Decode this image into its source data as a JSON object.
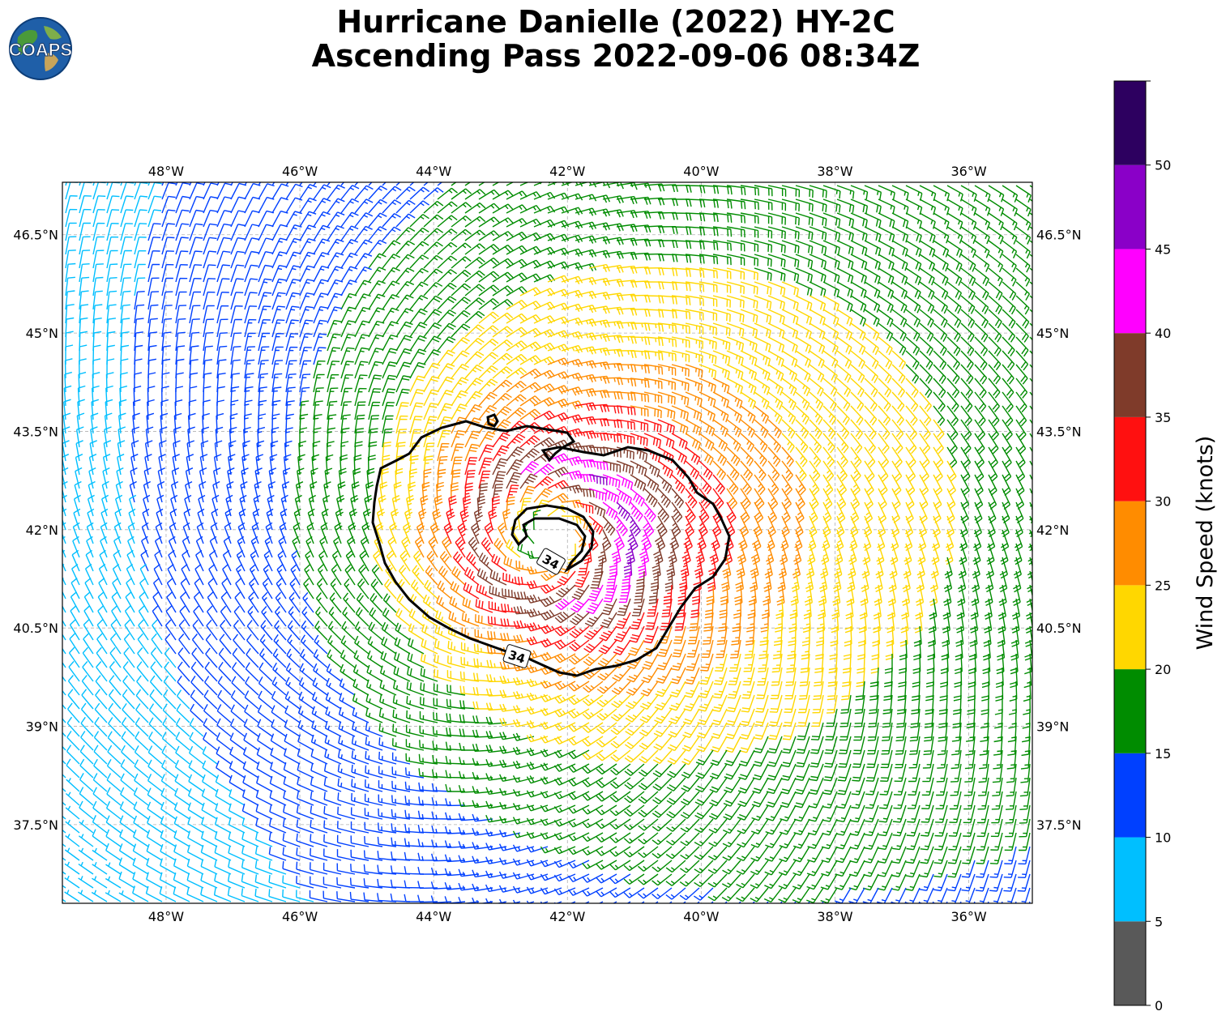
{
  "title": {
    "line1": "Hurricane Danielle (2022) HY-2C",
    "line2": "Ascending Pass 2022-09-06 08:34Z"
  },
  "logo": {
    "text": "COAPS"
  },
  "map": {
    "lon_range": [
      -49.55,
      -35.05
    ],
    "lat_range": [
      36.3,
      47.3
    ],
    "lon_ticks": [
      {
        "value": -48,
        "label": "48°W"
      },
      {
        "value": -46,
        "label": "46°W"
      },
      {
        "value": -44,
        "label": "44°W"
      },
      {
        "value": -42,
        "label": "42°W"
      },
      {
        "value": -40,
        "label": "40°W"
      },
      {
        "value": -38,
        "label": "38°W"
      },
      {
        "value": -36,
        "label": "36°W"
      }
    ],
    "lat_ticks": [
      {
        "value": 46.5,
        "label": "46.5°N"
      },
      {
        "value": 45.0,
        "label": "45°N"
      },
      {
        "value": 43.5,
        "label": "43.5°N"
      },
      {
        "value": 42.0,
        "label": "42°N"
      },
      {
        "value": 40.5,
        "label": "40.5°N"
      },
      {
        "value": 39.0,
        "label": "39°N"
      },
      {
        "value": 37.5,
        "label": "37.5°N"
      }
    ],
    "grid": true,
    "storm_center": {
      "lon": -42.2,
      "lat": 41.9
    },
    "contour_level": "34",
    "contour_labels": [
      "34",
      "34"
    ]
  },
  "colorbar": {
    "label": "Wind Speed (knots)",
    "bounds": [
      0,
      5,
      10,
      15,
      20,
      25,
      30,
      35,
      40,
      45,
      50,
      55
    ],
    "tick_labels": [
      "0",
      "5",
      "10",
      "15",
      "20",
      "25",
      "30",
      "35",
      "40",
      "45",
      "50"
    ],
    "colors": [
      "#595959",
      "#00bfff",
      "#0040ff",
      "#008c00",
      "#ffd700",
      "#ff8c00",
      "#ff1010",
      "#7f3b2a",
      "#ff00ff",
      "#8a00c8",
      "#2d0060"
    ]
  }
}
